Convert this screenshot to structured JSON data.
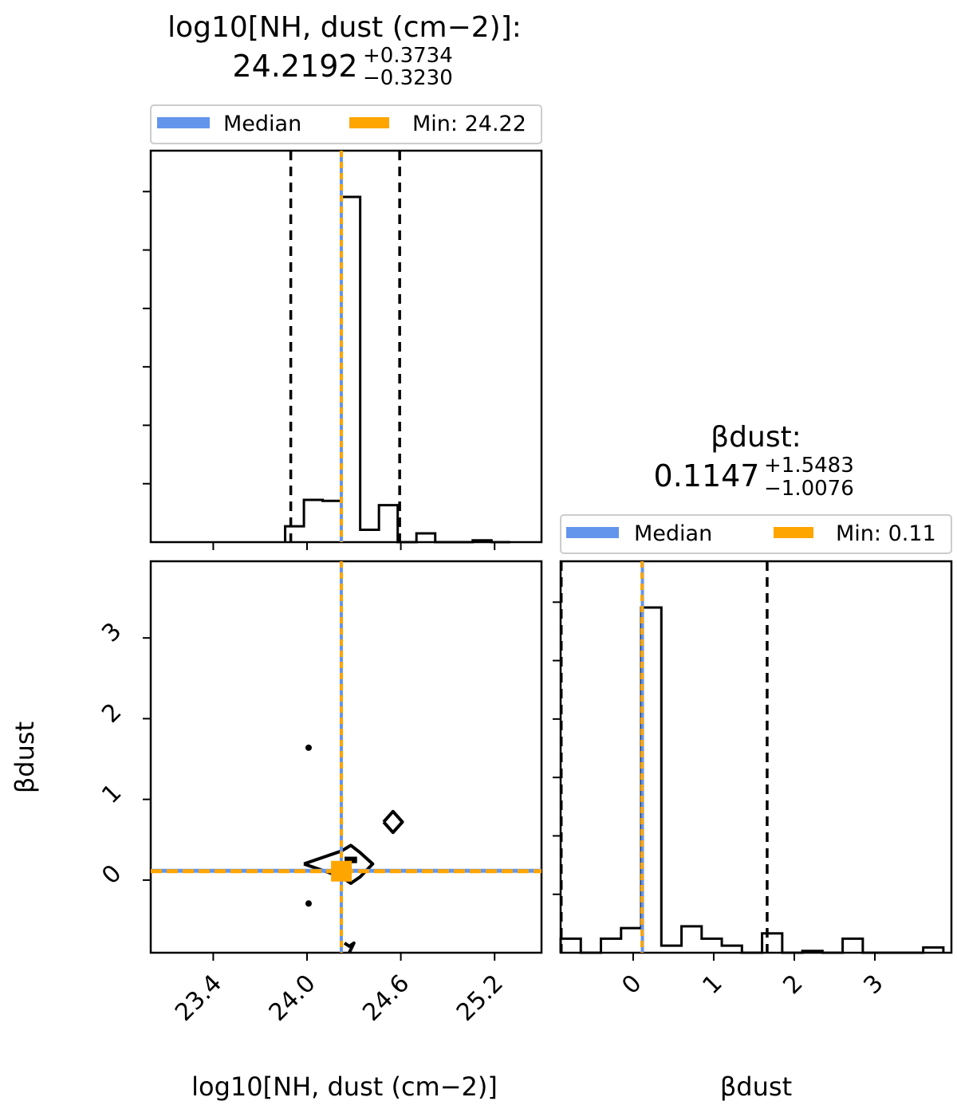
{
  "chart_data": [
    {
      "type": "histogram",
      "panel": "top-left",
      "title": {
        "param": "log10[NH, dust (cm−2)]:",
        "median": "24.2192",
        "plus": "+0.3734",
        "minus": "−0.3230"
      },
      "legend": {
        "placement": "top",
        "entries": [
          "Median",
          "Min: 24.22"
        ]
      },
      "xlim": [
        23.0,
        25.5
      ],
      "bins": {
        "edges": [
          23.86,
          23.98,
          24.1,
          24.22,
          24.34,
          24.46,
          24.58,
          24.7,
          24.82,
          24.94,
          25.06,
          25.18,
          25.3
        ],
        "heights": [
          0.045,
          0.12,
          0.117,
          0.98,
          0.035,
          0.105,
          0.0,
          0.025,
          0.0,
          0.0,
          0.005,
          0.0
        ]
      },
      "quantile_lines": [
        23.896,
        24.2192,
        24.5926
      ],
      "median": 24.2192,
      "min": 24.22,
      "colors": {
        "median": "#6495ed",
        "min": "#ffa500",
        "quantile": "#000000"
      }
    },
    {
      "type": "contour",
      "panel": "bottom-left",
      "xlabel": "log10[NH, dust (cm−2)]",
      "ylabel": "βdust",
      "xlim": [
        23.0,
        25.5
      ],
      "ylim": [
        -0.9,
        3.95
      ],
      "xticks": [
        "23.4",
        "24.0",
        "24.6",
        "25.2"
      ],
      "xtick_values": [
        23.4,
        24.0,
        24.6,
        25.2
      ],
      "yticks": [
        "0",
        "1",
        "2",
        "3"
      ],
      "ytick_values": [
        0,
        1,
        2,
        3
      ],
      "contours": [
        [
          [
            23.98,
            0.2
          ],
          [
            24.1,
            0.28
          ],
          [
            24.22,
            0.36
          ],
          [
            24.28,
            0.43
          ],
          [
            24.34,
            0.34
          ],
          [
            24.42,
            0.2
          ],
          [
            24.34,
            0.04
          ],
          [
            24.28,
            -0.04
          ],
          [
            24.22,
            0.04
          ],
          [
            24.1,
            0.12
          ],
          [
            23.98,
            0.2
          ]
        ],
        [
          [
            24.49,
            0.72
          ],
          [
            24.55,
            0.85
          ],
          [
            24.61,
            0.72
          ],
          [
            24.55,
            0.59
          ],
          [
            24.49,
            0.72
          ]
        ],
        [
          [
            24.24,
            -0.78
          ],
          [
            24.27,
            -0.82
          ],
          [
            24.3,
            -0.78
          ],
          [
            24.27,
            -0.9
          ]
        ]
      ],
      "dots": [
        [
          24.01,
          1.64
        ],
        [
          24.01,
          -0.29
        ]
      ],
      "filled_core": [
        [
          24.24,
          0.21
        ],
        [
          24.24,
          0.29
        ],
        [
          24.32,
          0.29
        ],
        [
          24.32,
          0.21
        ]
      ],
      "median_point": [
        24.2192,
        0.1147
      ],
      "min_point": [
        24.22,
        0.11
      ]
    },
    {
      "type": "histogram",
      "panel": "bottom-right",
      "title": {
        "param": "βdust:",
        "median": "0.1147",
        "plus": "+1.5483",
        "minus": "−1.0076"
      },
      "legend": {
        "placement": "top",
        "entries": [
          "Median",
          "Min: 0.11"
        ]
      },
      "xlabel": "βdust",
      "xlim": [
        -0.9,
        3.95
      ],
      "xticks": [
        "0",
        "1",
        "2",
        "3"
      ],
      "xtick_values": [
        0,
        1,
        2,
        3
      ],
      "bins": {
        "edges": [
          -0.9,
          -0.65,
          -0.4,
          -0.15,
          0.1,
          0.35,
          0.6,
          0.85,
          1.1,
          1.35,
          1.6,
          1.85,
          2.1,
          2.35,
          2.6,
          2.85,
          3.1,
          3.35,
          3.6,
          3.85
        ],
        "heights": [
          0.04,
          0.0,
          0.04,
          0.07,
          0.98,
          0.02,
          0.075,
          0.04,
          0.02,
          0.0,
          0.055,
          0.0,
          0.005,
          0.0,
          0.04,
          0.0,
          0.0,
          0.0,
          0.015
        ]
      },
      "quantile_lines": [
        -0.8929,
        0.1147,
        1.663
      ],
      "median": 0.1147,
      "min": 0.11
    }
  ]
}
